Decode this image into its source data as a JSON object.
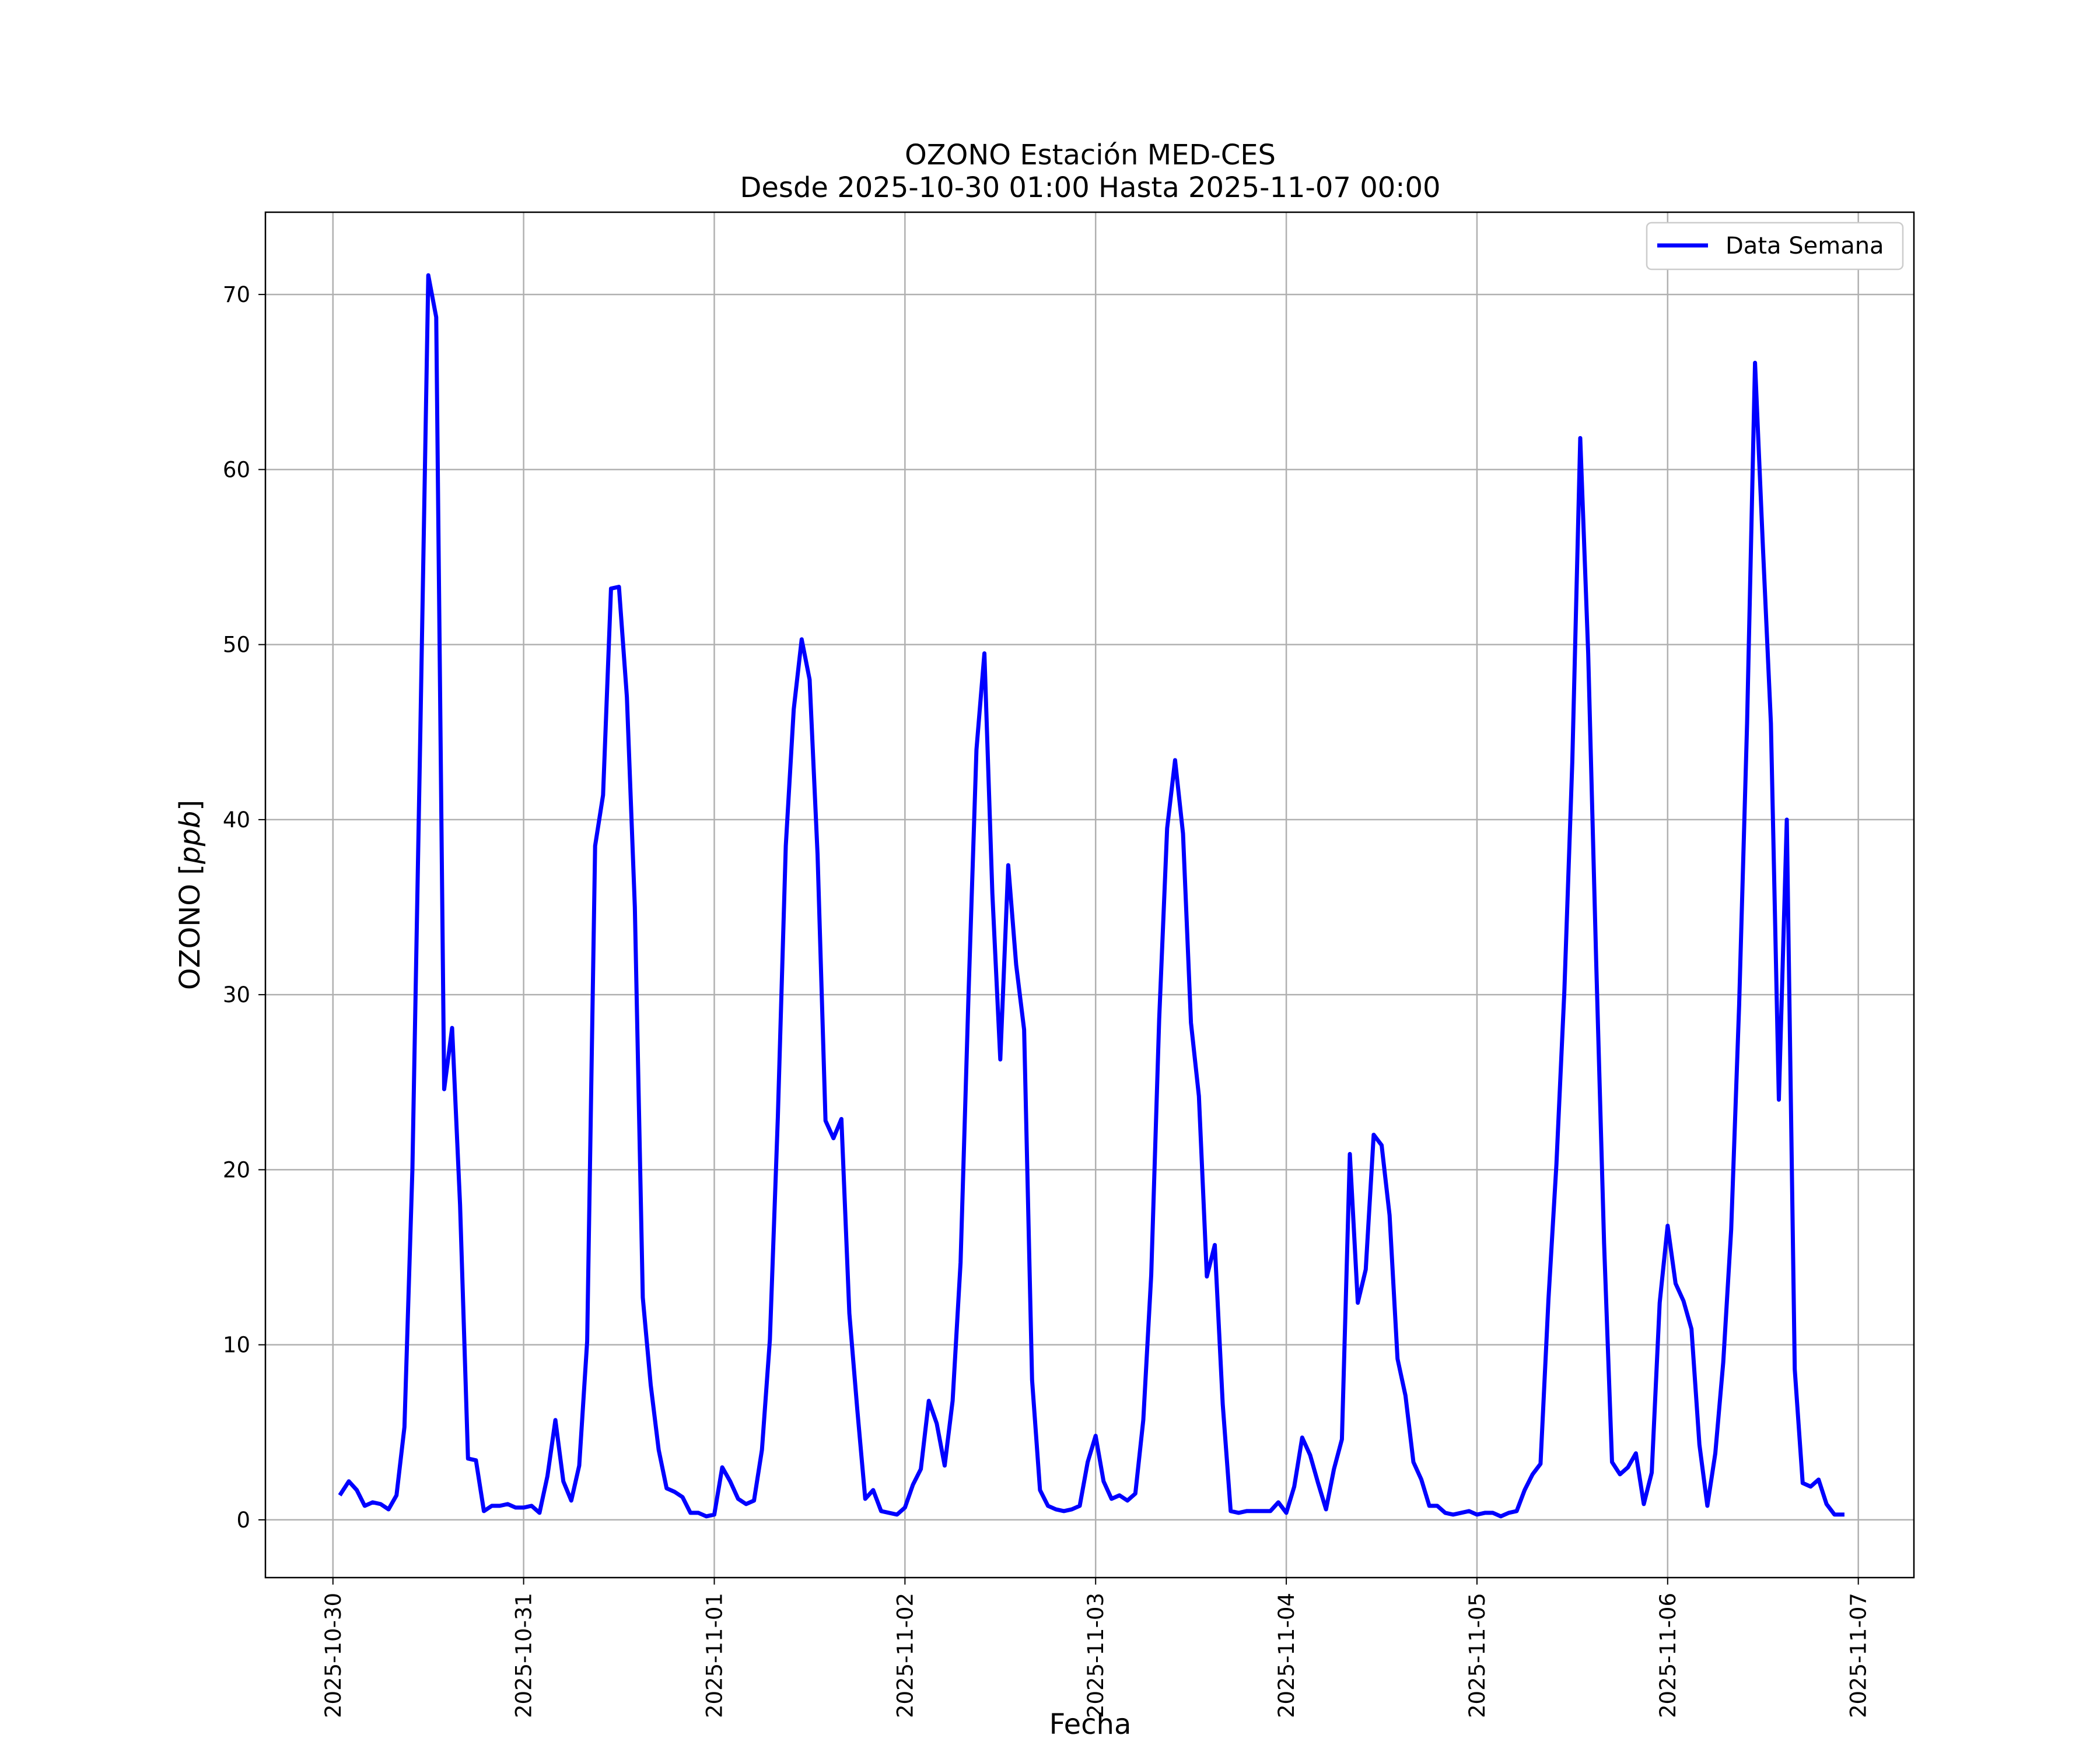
{
  "chart_data": {
    "type": "line",
    "title": "OZONO Estación MED-CES",
    "subtitle": "Desde 2025-10-30 01:00 Hasta 2025-11-07 00:00",
    "xlabel": "Fecha",
    "ylabel": "OZONO [ppb]",
    "ylabel_unit_italic": "ppb",
    "xlim": [
      "2025-10-29 15:30",
      "2025-11-07 07:00"
    ],
    "ylim": [
      -3.3,
      74.7
    ],
    "grid": true,
    "legend_position": "top-right",
    "x_ticks": [
      "2025-10-30",
      "2025-10-31",
      "2025-11-01",
      "2025-11-02",
      "2025-11-03",
      "2025-11-04",
      "2025-11-05",
      "2025-11-06",
      "2025-11-07"
    ],
    "y_ticks": [
      0,
      10,
      20,
      30,
      40,
      50,
      60,
      70
    ],
    "series": [
      {
        "name": "Data Semana",
        "color": "#0000ff",
        "x_start": "2025-10-30 01:00",
        "step": "1 hour",
        "values": [
          1.5,
          2.2,
          1.7,
          0.8,
          1.0,
          0.9,
          0.6,
          1.4,
          5.3,
          20.0,
          45.0,
          71.1,
          68.7,
          24.6,
          28.1,
          18.0,
          3.5,
          3.4,
          0.5,
          0.8,
          0.8,
          0.9,
          0.7,
          0.7,
          0.8,
          0.4,
          2.5,
          5.7,
          2.2,
          1.1,
          3.1,
          10.2,
          38.5,
          41.4,
          53.2,
          53.3,
          47.0,
          35.0,
          12.7,
          7.7,
          4.0,
          1.8,
          1.6,
          1.3,
          0.4,
          0.4,
          0.2,
          0.3,
          3.0,
          2.2,
          1.2,
          0.9,
          1.1,
          4.0,
          10.3,
          23.0,
          38.5,
          46.3,
          50.3,
          48.0,
          38.0,
          22.8,
          21.8,
          22.9,
          11.8,
          6.3,
          1.2,
          1.7,
          0.5,
          0.4,
          0.3,
          0.7,
          2.0,
          2.9,
          6.8,
          5.5,
          3.1,
          6.8,
          14.7,
          30.0,
          44.0,
          49.5,
          35.8,
          26.3,
          37.4,
          31.7,
          28.0,
          8.0,
          1.7,
          0.8,
          0.6,
          0.5,
          0.6,
          0.8,
          3.3,
          4.8,
          2.2,
          1.2,
          1.4,
          1.1,
          1.5,
          5.7,
          14.0,
          28.6,
          39.5,
          43.4,
          39.2,
          28.4,
          24.2,
          13.9,
          15.7,
          6.6,
          0.5,
          0.4,
          0.5,
          0.5,
          0.5,
          0.5,
          1.0,
          0.4,
          1.9,
          4.7,
          3.7,
          2.1,
          0.6,
          2.9,
          4.6,
          20.9,
          12.4,
          14.3,
          22.0,
          21.4,
          17.4,
          9.2,
          7.1,
          3.3,
          2.3,
          0.8,
          0.8,
          0.4,
          0.3,
          0.4,
          0.5,
          0.3,
          0.4,
          0.4,
          0.2,
          0.4,
          0.5,
          1.7,
          2.6,
          3.2,
          12.6,
          20.3,
          30.2,
          43.3,
          61.8,
          49.5,
          32.0,
          15.8,
          3.3,
          2.6,
          3.0,
          3.8,
          0.9,
          2.7,
          12.4,
          16.8,
          13.5,
          12.5,
          10.9,
          4.3,
          0.8,
          3.8,
          9.0,
          16.6,
          29.4,
          45.5,
          66.1,
          55.5,
          45.5,
          24.0,
          40.0,
          8.6,
          2.1,
          1.9,
          2.3,
          0.9,
          0.3,
          0.3
        ]
      }
    ]
  }
}
